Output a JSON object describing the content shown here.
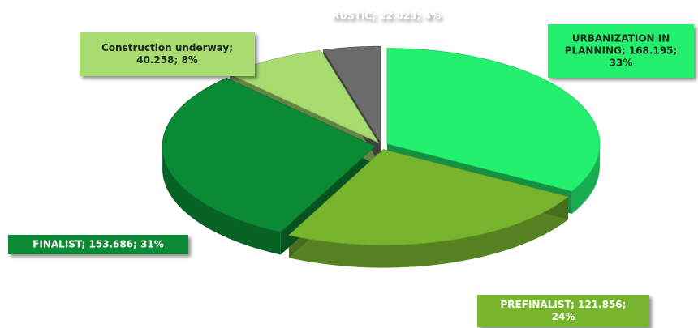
{
  "chart_data": {
    "type": "pie3d",
    "values": [
      168.195,
      121.856,
      153.686,
      40.258,
      22.023
    ],
    "value_labels": [
      [
        "URBANIZATION IN",
        "PLANNING; 168.195;",
        "33%"
      ],
      [
        "PREFINALIST; 121.856;",
        "24%"
      ],
      [
        "FINALIST; 153.686; 31%"
      ],
      [
        "Construction underway;",
        "40.258; 8%"
      ],
      [
        "RUSTIC; 22.023; 4%"
      ]
    ],
    "colors": [
      "#22f06e",
      "#78b52e",
      "#0a8a34",
      "#a8dc70",
      "#6b6b6b"
    ]
  }
}
